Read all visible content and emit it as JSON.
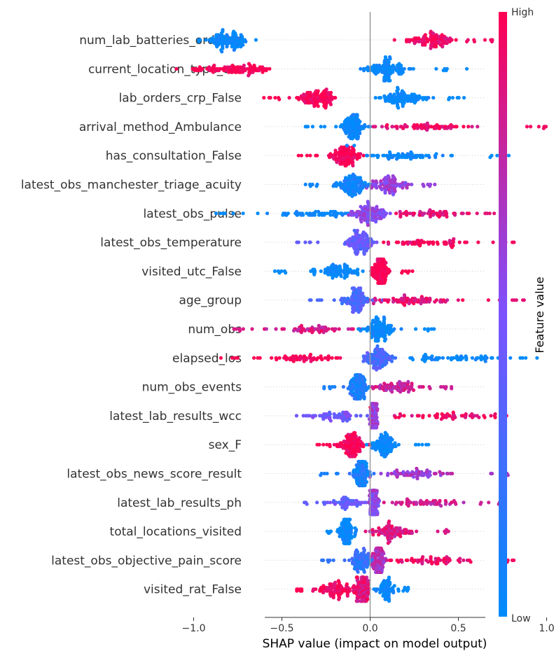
{
  "chart_data": {
    "type": "scatter",
    "subtype": "beeswarm",
    "xlabel": "SHAP value (impact on model output)",
    "xlim": [
      -1.2,
      1.3
    ],
    "x_ticks": [
      -1.0,
      -0.5,
      0.0,
      0.5,
      1.0
    ],
    "x_tick_labels": [
      "−1.0",
      "−0.5",
      "0.0",
      "0.5",
      "1.0"
    ],
    "colorbar": {
      "label": "Feature value",
      "high_label": "High",
      "low_label": "Low",
      "low_color": "#008bfb",
      "high_color": "#ff0052"
    },
    "features": [
      {
        "name": "num_lab_batteries_ordered",
        "min": -1.0,
        "max": 0.72,
        "clusters": [
          {
            "center": -0.8,
            "spread": 0.1,
            "density": 1.0,
            "color": 0.0
          },
          {
            "center": 0.35,
            "spread": 0.15,
            "density": 0.9,
            "color": 0.95
          }
        ]
      },
      {
        "name": "current_location_type_utc",
        "min": -1.1,
        "max": 0.55,
        "clusters": [
          {
            "center": -0.75,
            "spread": 0.18,
            "density": 0.9,
            "color": 1.0
          },
          {
            "center": 0.1,
            "spread": 0.1,
            "density": 1.0,
            "color": 0.0
          }
        ]
      },
      {
        "name": "lab_orders_crp_False",
        "min": -0.65,
        "max": 0.58,
        "clusters": [
          {
            "center": -0.3,
            "spread": 0.1,
            "density": 1.0,
            "color": 1.0
          },
          {
            "center": 0.18,
            "spread": 0.12,
            "density": 0.9,
            "color": 0.0
          }
        ]
      },
      {
        "name": "arrival_method_Ambulance",
        "min": -0.42,
        "max": 1.05,
        "clusters": [
          {
            "center": -0.1,
            "spread": 0.06,
            "density": 1.0,
            "color": 0.0
          },
          {
            "center": 0.3,
            "spread": 0.28,
            "density": 0.6,
            "color": 0.95
          }
        ]
      },
      {
        "name": "has_consultation_False",
        "min": -0.42,
        "max": 0.8,
        "clusters": [
          {
            "center": -0.15,
            "spread": 0.07,
            "density": 1.0,
            "color": 1.0
          },
          {
            "center": 0.2,
            "spread": 0.22,
            "density": 0.6,
            "color": 0.0
          }
        ]
      },
      {
        "name": "latest_obs_manchester_triage_acuity",
        "min": -0.38,
        "max": 0.38,
        "clusters": [
          {
            "center": -0.1,
            "spread": 0.08,
            "density": 1.0,
            "color": 0.05
          },
          {
            "center": 0.12,
            "spread": 0.1,
            "density": 0.8,
            "color": 0.6
          }
        ]
      },
      {
        "name": "latest_obs_pulse",
        "min": -0.92,
        "max": 0.75,
        "clusters": [
          {
            "center": -0.3,
            "spread": 0.25,
            "density": 0.5,
            "color": 0.0
          },
          {
            "center": 0.0,
            "spread": 0.1,
            "density": 1.0,
            "color": 0.55
          },
          {
            "center": 0.35,
            "spread": 0.2,
            "density": 0.5,
            "color": 0.9
          }
        ]
      },
      {
        "name": "latest_obs_temperature",
        "min": -0.45,
        "max": 0.85,
        "clusters": [
          {
            "center": -0.05,
            "spread": 0.08,
            "density": 1.0,
            "color": 0.4
          },
          {
            "center": 0.35,
            "spread": 0.22,
            "density": 0.5,
            "color": 0.95
          }
        ]
      },
      {
        "name": "visited_utc_False",
        "min": -0.55,
        "max": 0.25,
        "clusters": [
          {
            "center": -0.2,
            "spread": 0.12,
            "density": 0.8,
            "color": 0.0
          },
          {
            "center": 0.06,
            "spread": 0.04,
            "density": 1.0,
            "color": 1.0
          }
        ]
      },
      {
        "name": "age_group",
        "min": -0.35,
        "max": 0.88,
        "clusters": [
          {
            "center": -0.08,
            "spread": 0.07,
            "density": 1.0,
            "color": 0.3
          },
          {
            "center": 0.25,
            "spread": 0.2,
            "density": 0.7,
            "color": 0.9
          }
        ]
      },
      {
        "name": "num_obs",
        "min": -0.78,
        "max": 0.37,
        "clusters": [
          {
            "center": -0.35,
            "spread": 0.2,
            "density": 0.5,
            "color": 0.85
          },
          {
            "center": 0.05,
            "spread": 0.08,
            "density": 1.0,
            "color": 0.0
          }
        ]
      },
      {
        "name": "elapsed_los",
        "min": -0.85,
        "max": 0.95,
        "clusters": [
          {
            "center": -0.4,
            "spread": 0.22,
            "density": 0.5,
            "color": 1.0
          },
          {
            "center": 0.05,
            "spread": 0.07,
            "density": 1.0,
            "color": 0.3
          },
          {
            "center": 0.45,
            "spread": 0.25,
            "density": 0.5,
            "color": 0.0
          }
        ]
      },
      {
        "name": "num_obs_events",
        "min": -0.28,
        "max": 0.48,
        "clusters": [
          {
            "center": -0.07,
            "spread": 0.05,
            "density": 1.0,
            "color": 0.1
          },
          {
            "center": 0.15,
            "spread": 0.14,
            "density": 0.7,
            "color": 0.8
          }
        ]
      },
      {
        "name": "latest_lab_results_wcc",
        "min": -0.42,
        "max": 1.22,
        "clusters": [
          {
            "center": -0.2,
            "spread": 0.12,
            "density": 0.5,
            "color": 0.45
          },
          {
            "center": 0.02,
            "spread": 0.02,
            "density": 1.0,
            "color": 0.6
          },
          {
            "center": 0.45,
            "spread": 0.3,
            "density": 0.5,
            "color": 0.95
          }
        ]
      },
      {
        "name": "sex_F",
        "min": -0.3,
        "max": 0.33,
        "clusters": [
          {
            "center": -0.1,
            "spread": 0.07,
            "density": 1.0,
            "color": 1.0
          },
          {
            "center": 0.08,
            "spread": 0.07,
            "density": 0.9,
            "color": 0.0
          }
        ]
      },
      {
        "name": "latest_obs_news_score_result",
        "min": -0.3,
        "max": 0.8,
        "clusters": [
          {
            "center": -0.05,
            "spread": 0.04,
            "density": 1.0,
            "color": 0.1
          },
          {
            "center": 0.25,
            "spread": 0.18,
            "density": 0.6,
            "color": 0.65
          }
        ]
      },
      {
        "name": "latest_lab_results_ph",
        "min": -0.38,
        "max": 0.75,
        "clusters": [
          {
            "center": -0.12,
            "spread": 0.12,
            "density": 0.5,
            "color": 0.4
          },
          {
            "center": 0.02,
            "spread": 0.02,
            "density": 1.0,
            "color": 0.55
          },
          {
            "center": 0.3,
            "spread": 0.2,
            "density": 0.5,
            "color": 0.8
          }
        ]
      },
      {
        "name": "total_locations_visited",
        "min": -0.25,
        "max": 0.45,
        "clusters": [
          {
            "center": -0.13,
            "spread": 0.04,
            "density": 1.0,
            "color": 0.0
          },
          {
            "center": 0.12,
            "spread": 0.12,
            "density": 0.8,
            "color": 0.85
          }
        ]
      },
      {
        "name": "latest_obs_objective_pain_score",
        "min": -0.28,
        "max": 0.82,
        "clusters": [
          {
            "center": -0.05,
            "spread": 0.06,
            "density": 0.8,
            "color": 0.2
          },
          {
            "center": 0.05,
            "spread": 0.03,
            "density": 1.0,
            "color": 0.7
          },
          {
            "center": 0.35,
            "spread": 0.2,
            "density": 0.55,
            "color": 0.95
          }
        ]
      },
      {
        "name": "visited_rat_False",
        "min": -0.45,
        "max": 0.25,
        "clusters": [
          {
            "center": -0.2,
            "spread": 0.1,
            "density": 0.8,
            "color": 1.0
          },
          {
            "center": -0.05,
            "spread": 0.04,
            "density": 1.0,
            "color": 0.9
          },
          {
            "center": 0.1,
            "spread": 0.06,
            "density": 0.6,
            "color": 0.0
          }
        ]
      }
    ]
  }
}
